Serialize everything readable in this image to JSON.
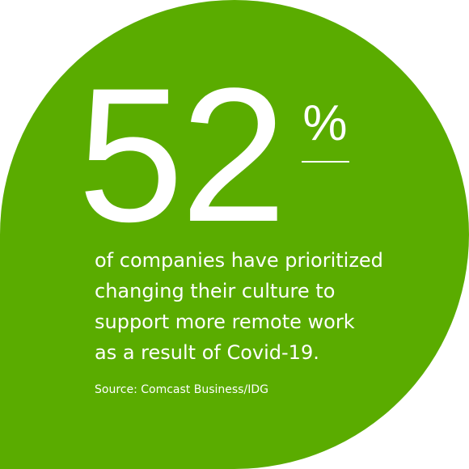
{
  "stat": {
    "value": "52",
    "unit": "%"
  },
  "description": [
    "of companies have prioritized",
    "changing their culture to",
    "support more remote work",
    "as a result of Covid-19."
  ],
  "source": "Source: Comcast Business/IDG"
}
